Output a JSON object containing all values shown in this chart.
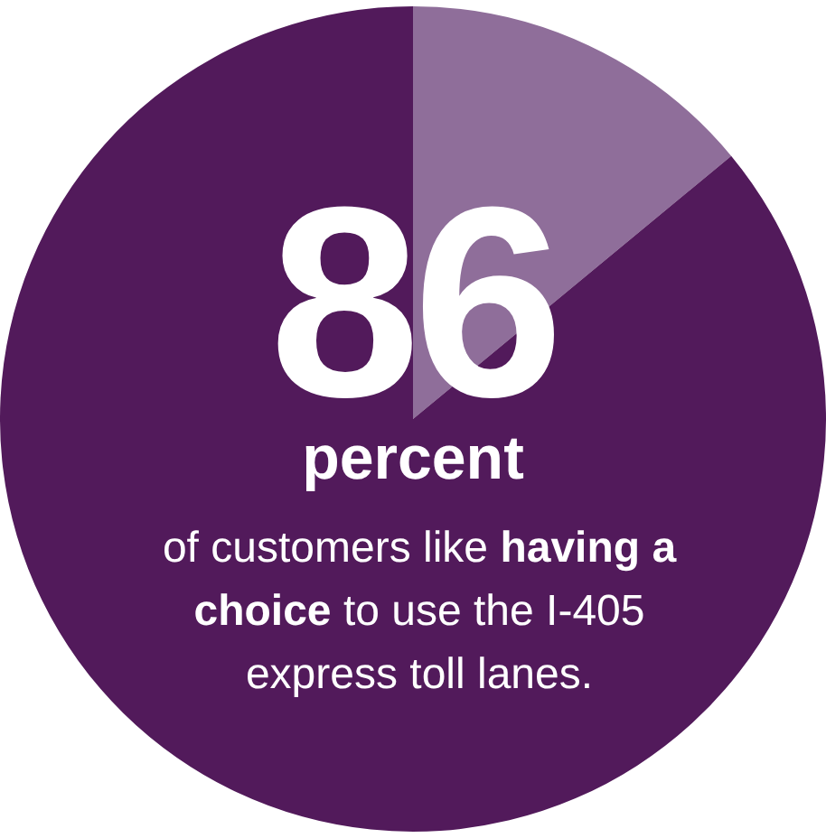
{
  "chart_data": {
    "type": "pie",
    "categories": [
      null,
      null
    ],
    "values": [
      14,
      86
    ],
    "colors": [
      "#8f6e9a",
      "#521a5b"
    ],
    "annotations": [
      "86",
      "percent",
      "of customers like",
      "having a choice",
      "to use the I-405 express toll lanes."
    ]
  }
}
